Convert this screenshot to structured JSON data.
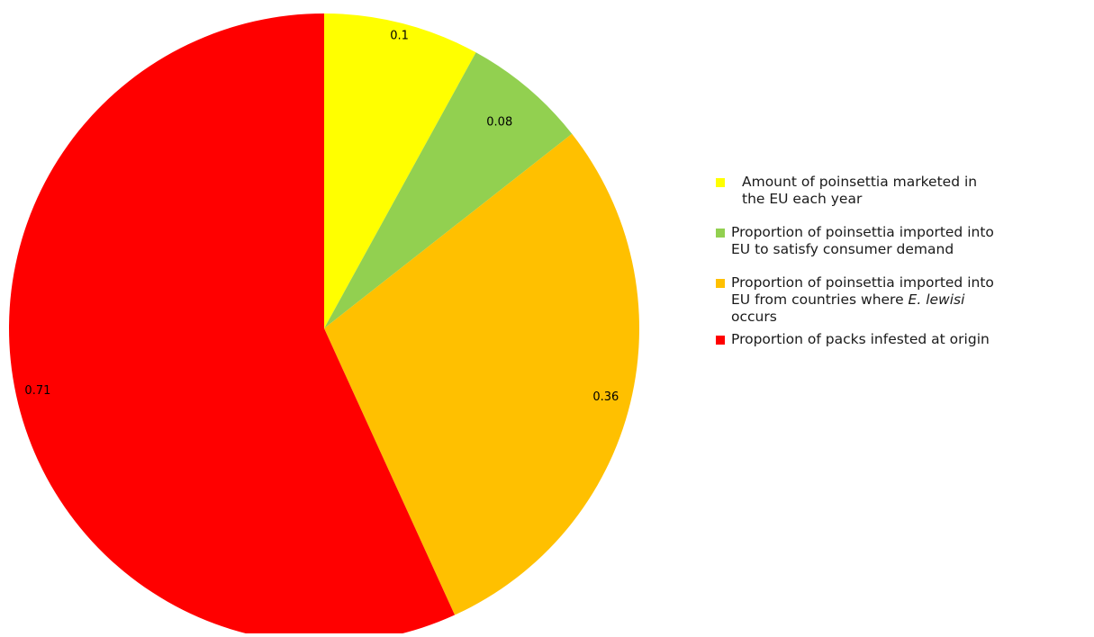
{
  "chart_data": {
    "type": "pie",
    "slices": [
      {
        "label": "Amount of poinsettia marketed in the EU each year",
        "value": 0.1,
        "color": "#ffff00"
      },
      {
        "label": "Proportion of poinsettia imported into EU to satisfy consumer demand",
        "value": 0.08,
        "color": "#92d050"
      },
      {
        "label": "Proportion of poinsettia imported into EU from countries where E. lewisi occurs",
        "value": 0.36,
        "color": "#ffc000"
      },
      {
        "label": "Proportion of packs infested at origin",
        "value": 0.71,
        "color": "#ff0000"
      }
    ],
    "data_labels": [
      "0.1",
      "0.08",
      "0.36",
      "0.71"
    ],
    "legend_position": "right"
  },
  "legend": {
    "item_1": {
      "line_1": "Amount of poinsettia marketed in",
      "line_2": "the EU each year"
    },
    "item_2": {
      "line_1": "Proportion of poinsettia imported into",
      "line_2": "EU to satisfy consumer demand"
    },
    "item_3": {
      "line_1": "Proportion of poinsettia imported into",
      "line_2_a": "EU from countries where ",
      "line_2_em": "E. lewisi",
      "line_3": "occurs"
    },
    "item_4": {
      "line_1": "Proportion of packs infested at origin"
    }
  }
}
